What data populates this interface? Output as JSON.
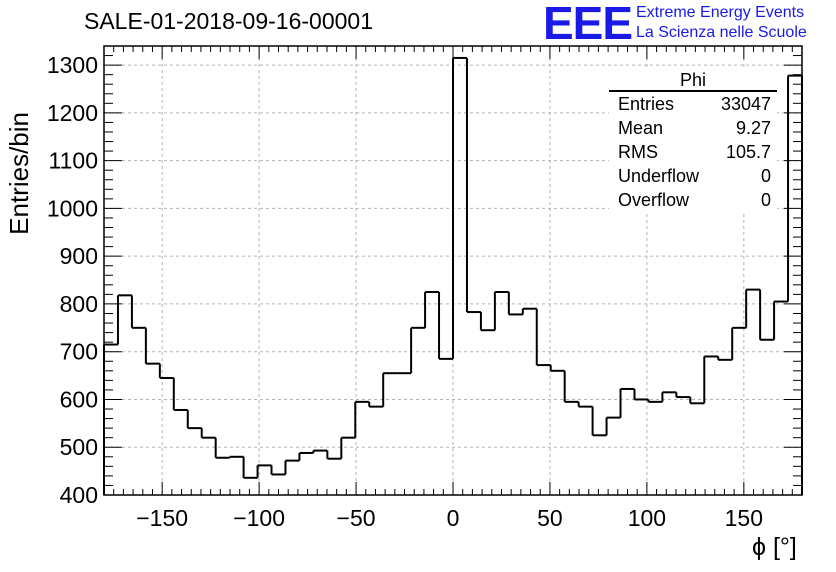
{
  "header": {
    "title": "SALE-01-2018-09-16-00001",
    "logo": "EEE",
    "org_line1": "Extreme Energy Events",
    "org_line2": "La Scienza nelle Scuole"
  },
  "stats": {
    "name": "Phi",
    "rows": [
      {
        "label": "Entries",
        "value": "33047"
      },
      {
        "label": "Mean",
        "value": "9.27"
      },
      {
        "label": "RMS",
        "value": "105.7"
      },
      {
        "label": "Underflow",
        "value": "0"
      },
      {
        "label": "Overflow",
        "value": "0"
      }
    ]
  },
  "colors": {
    "line": "#000000",
    "grid": "#b3b3b3",
    "logo": "#1a1ae6"
  },
  "chart_data": {
    "type": "histogram",
    "title": "SALE-01-2018-09-16-00001",
    "xlabel": "ϕ [°]",
    "ylabel": "Entries/bin",
    "xlim": [
      -180,
      180
    ],
    "ylim": [
      400,
      1340
    ],
    "bin_width": 7.2,
    "grid": true,
    "x_ticks": [
      -150,
      -100,
      -50,
      0,
      50,
      100,
      150
    ],
    "x_tick_labels": [
      "−150",
      "−100",
      "−50",
      "0",
      "50",
      "100",
      "150"
    ],
    "y_ticks": [
      400,
      500,
      600,
      700,
      800,
      900,
      1000,
      1100,
      1200,
      1300
    ],
    "y_tick_labels": [
      "400",
      "500",
      "600",
      "700",
      "800",
      "900",
      "1000",
      "1100",
      "1200",
      "1300"
    ],
    "values": [
      715,
      818,
      750,
      675,
      645,
      578,
      540,
      520,
      478,
      480,
      436,
      462,
      443,
      472,
      488,
      493,
      476,
      520,
      595,
      585,
      655,
      655,
      750,
      825,
      685,
      1315,
      783,
      745,
      825,
      778,
      790,
      672,
      660,
      595,
      585,
      525,
      562,
      622,
      600,
      595,
      615,
      605,
      592,
      690,
      683,
      750,
      830,
      725,
      805,
      1278
    ]
  }
}
